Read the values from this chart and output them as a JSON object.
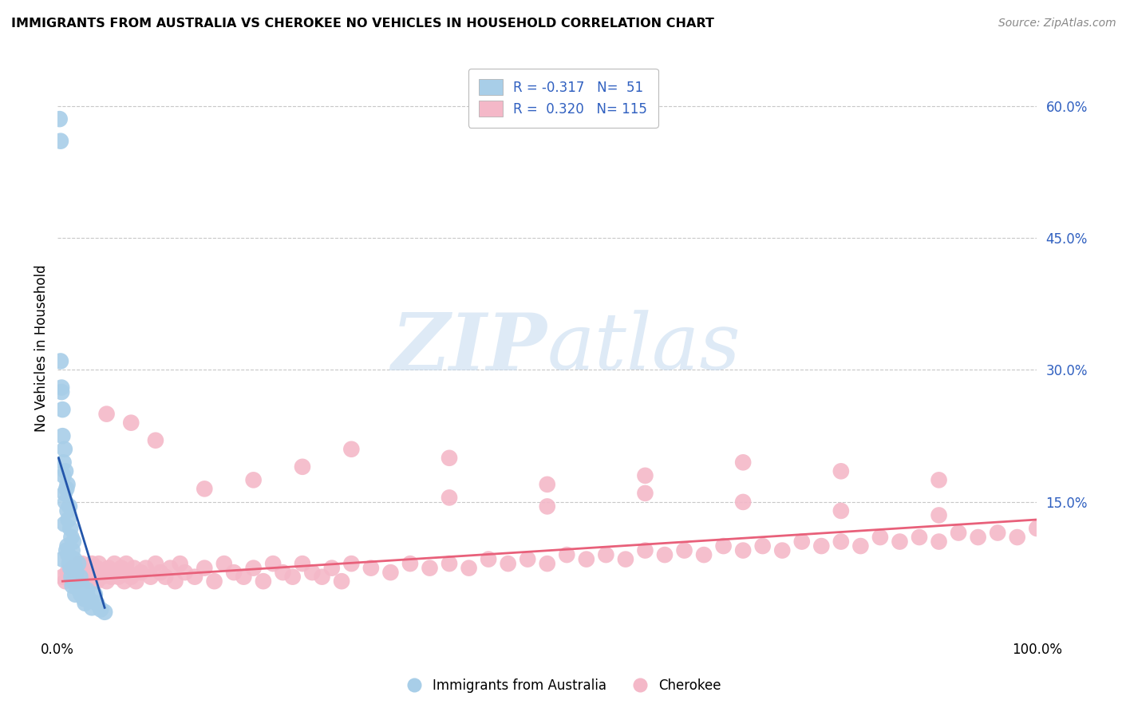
{
  "title": "IMMIGRANTS FROM AUSTRALIA VS CHEROKEE NO VEHICLES IN HOUSEHOLD CORRELATION CHART",
  "source": "Source: ZipAtlas.com",
  "ylabel_label": "No Vehicles in Household",
  "xlim": [
    0.0,
    1.0
  ],
  "ylim": [
    0.0,
    0.65
  ],
  "legend_labels": [
    "Immigrants from Australia",
    "Cherokee"
  ],
  "legend_r": [
    -0.317,
    0.32
  ],
  "legend_n": [
    51,
    115
  ],
  "blue_color": "#A8CEE8",
  "pink_color": "#F4B8C8",
  "blue_line_color": "#2255AA",
  "pink_line_color": "#E8607A",
  "text_color": "#3060C0",
  "background_color": "#FFFFFF",
  "grid_color": "#C8C8C8",
  "aus_x": [
    0.002,
    0.003,
    0.003,
    0.004,
    0.004,
    0.005,
    0.005,
    0.005,
    0.006,
    0.006,
    0.007,
    0.007,
    0.007,
    0.008,
    0.008,
    0.009,
    0.009,
    0.01,
    0.01,
    0.01,
    0.011,
    0.011,
    0.012,
    0.012,
    0.013,
    0.013,
    0.014,
    0.014,
    0.015,
    0.015,
    0.016,
    0.016,
    0.017,
    0.018,
    0.018,
    0.019,
    0.02,
    0.021,
    0.022,
    0.023,
    0.024,
    0.025,
    0.027,
    0.028,
    0.03,
    0.032,
    0.035,
    0.038,
    0.04,
    0.044,
    0.048
  ],
  "aus_y": [
    0.585,
    0.56,
    0.31,
    0.28,
    0.275,
    0.255,
    0.225,
    0.085,
    0.195,
    0.18,
    0.21,
    0.16,
    0.125,
    0.185,
    0.15,
    0.165,
    0.095,
    0.17,
    0.14,
    0.1,
    0.13,
    0.09,
    0.145,
    0.08,
    0.12,
    0.075,
    0.11,
    0.065,
    0.095,
    0.055,
    0.105,
    0.06,
    0.085,
    0.075,
    0.045,
    0.07,
    0.06,
    0.08,
    0.05,
    0.065,
    0.045,
    0.055,
    0.04,
    0.035,
    0.05,
    0.04,
    0.03,
    0.045,
    0.035,
    0.028,
    0.025
  ],
  "cher_x": [
    0.005,
    0.008,
    0.01,
    0.012,
    0.015,
    0.018,
    0.02,
    0.022,
    0.025,
    0.025,
    0.03,
    0.03,
    0.032,
    0.035,
    0.035,
    0.038,
    0.04,
    0.04,
    0.042,
    0.045,
    0.048,
    0.05,
    0.052,
    0.055,
    0.058,
    0.06,
    0.062,
    0.065,
    0.068,
    0.07,
    0.072,
    0.075,
    0.078,
    0.08,
    0.085,
    0.09,
    0.095,
    0.1,
    0.105,
    0.11,
    0.115,
    0.12,
    0.125,
    0.13,
    0.14,
    0.15,
    0.16,
    0.17,
    0.18,
    0.19,
    0.2,
    0.21,
    0.22,
    0.23,
    0.24,
    0.25,
    0.26,
    0.27,
    0.28,
    0.29,
    0.3,
    0.32,
    0.34,
    0.36,
    0.38,
    0.4,
    0.42,
    0.44,
    0.46,
    0.48,
    0.5,
    0.52,
    0.54,
    0.56,
    0.58,
    0.6,
    0.62,
    0.64,
    0.66,
    0.68,
    0.7,
    0.72,
    0.74,
    0.76,
    0.78,
    0.8,
    0.82,
    0.84,
    0.86,
    0.88,
    0.9,
    0.92,
    0.94,
    0.96,
    0.98,
    1.0,
    0.05,
    0.075,
    0.1,
    0.15,
    0.2,
    0.25,
    0.3,
    0.4,
    0.5,
    0.6,
    0.7,
    0.8,
    0.9,
    0.4,
    0.5,
    0.6,
    0.7,
    0.8,
    0.9
  ],
  "cher_y": [
    0.065,
    0.06,
    0.07,
    0.065,
    0.075,
    0.07,
    0.06,
    0.08,
    0.065,
    0.08,
    0.07,
    0.075,
    0.06,
    0.08,
    0.065,
    0.07,
    0.075,
    0.06,
    0.08,
    0.065,
    0.07,
    0.06,
    0.075,
    0.065,
    0.08,
    0.07,
    0.065,
    0.075,
    0.06,
    0.08,
    0.07,
    0.065,
    0.075,
    0.06,
    0.07,
    0.075,
    0.065,
    0.08,
    0.07,
    0.065,
    0.075,
    0.06,
    0.08,
    0.07,
    0.065,
    0.075,
    0.06,
    0.08,
    0.07,
    0.065,
    0.075,
    0.06,
    0.08,
    0.07,
    0.065,
    0.08,
    0.07,
    0.065,
    0.075,
    0.06,
    0.08,
    0.075,
    0.07,
    0.08,
    0.075,
    0.08,
    0.075,
    0.085,
    0.08,
    0.085,
    0.08,
    0.09,
    0.085,
    0.09,
    0.085,
    0.095,
    0.09,
    0.095,
    0.09,
    0.1,
    0.095,
    0.1,
    0.095,
    0.105,
    0.1,
    0.105,
    0.1,
    0.11,
    0.105,
    0.11,
    0.105,
    0.115,
    0.11,
    0.115,
    0.11,
    0.12,
    0.25,
    0.24,
    0.22,
    0.165,
    0.175,
    0.19,
    0.21,
    0.2,
    0.17,
    0.18,
    0.195,
    0.185,
    0.175,
    0.155,
    0.145,
    0.16,
    0.15,
    0.14,
    0.135
  ],
  "aus_line_x": [
    0.001,
    0.048
  ],
  "aus_line_y": [
    0.2,
    0.03
  ],
  "cher_line_x": [
    0.005,
    1.0
  ],
  "cher_line_y": [
    0.06,
    0.13
  ]
}
